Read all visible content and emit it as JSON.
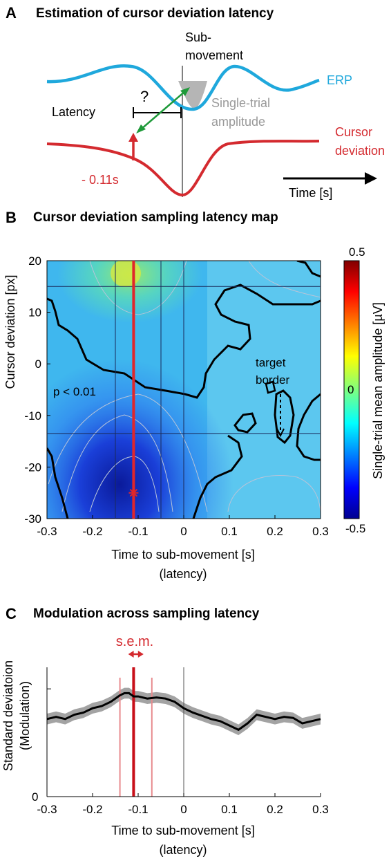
{
  "panelA": {
    "letter": "A",
    "title": "Estimation of cursor deviation latency",
    "submovement": [
      "Sub-",
      "movement"
    ],
    "erp_label": "ERP",
    "question": "?",
    "latency_label": "Latency",
    "single_trial": [
      "Single-trial",
      "amplitude"
    ],
    "cursor_label": [
      "Cursor",
      "deviation"
    ],
    "offset_label": "- 0.11s",
    "time_label": "Time [s]",
    "colors": {
      "erp": "#1fa8dc",
      "cursor": "#d42a2f",
      "arrow": "#1f9a3a",
      "patch": "#b5b5b5"
    }
  },
  "panelB": {
    "letter": "B",
    "title": "Cursor deviation sampling latency map",
    "ylabel": "Cursor deviation [px]",
    "xlabel": "Time to sub-movement [s]",
    "xlabel2": "(latency)",
    "pval": "p < 0.01",
    "target_border": [
      "target",
      "border"
    ],
    "colorbar_label": "Single-trial mean amplitude [µV]",
    "colorbar_ticks": [
      "0.5",
      "0",
      "-0.5"
    ]
  },
  "panelC": {
    "letter": "C",
    "title": "Modulation across sampling latency",
    "sem_label": "s.e.m.",
    "ylabel": "Standard deviatoion",
    "ylabel2": "(Modulation)",
    "xlabel": "Time to sub-movement [s]",
    "xlabel2": "(latency)",
    "y_zero": "0"
  },
  "chart_data": [
    {
      "type": "heatmap",
      "title": "Cursor deviation sampling latency map",
      "xlabel": "Time to sub-movement [s]",
      "ylabel": "Cursor deviation [px]",
      "xlim": [
        -0.3,
        0.3
      ],
      "ylim": [
        -30,
        20
      ],
      "x_ticks": [
        -0.3,
        -0.2,
        -0.1,
        0,
        0.1,
        0.2,
        0.3
      ],
      "x_tick_labels": [
        "-0.3",
        "-0.2",
        "-0.1",
        "0",
        "0.1",
        "0.2",
        "0.3"
      ],
      "y_ticks": [
        -30,
        -20,
        -10,
        0,
        10,
        20
      ],
      "y_tick_labels": [
        "-30",
        "-20",
        "-10",
        "0",
        "10",
        "20"
      ],
      "colorbar": {
        "min": -0.5,
        "max": 0.5,
        "label": "Single-trial mean amplitude [µV]",
        "colormap": "jet"
      },
      "marker": {
        "x": -0.11,
        "y": -25
      },
      "latency_line": -0.11,
      "hlines": [
        15,
        -13.5
      ],
      "vlines": [
        -0.15,
        -0.05,
        0
      ]
    },
    {
      "type": "line",
      "title": "Modulation across sampling latency",
      "xlabel": "Time to sub-movement [s]",
      "ylabel": "Standard deviatoion (Modulation)",
      "xlim": [
        -0.3,
        0.3
      ],
      "x_ticks": [
        -0.3,
        -0.2,
        -0.1,
        0,
        0.1,
        0.2,
        0.3
      ],
      "x_tick_labels": [
        "-0.3",
        "-0.2",
        "-0.1",
        "0",
        "0.1",
        "0.2",
        "0.3"
      ],
      "peak_latency": -0.11,
      "sem_range": [
        -0.14,
        -0.07
      ],
      "ylim": [
        0,
        1.2
      ],
      "x": [
        -0.3,
        -0.28,
        -0.26,
        -0.24,
        -0.22,
        -0.2,
        -0.18,
        -0.16,
        -0.14,
        -0.13,
        -0.12,
        -0.11,
        -0.1,
        -0.08,
        -0.06,
        -0.04,
        -0.02,
        0,
        0.02,
        0.04,
        0.06,
        0.08,
        0.1,
        0.12,
        0.14,
        0.16,
        0.18,
        0.2,
        0.22,
        0.24,
        0.26,
        0.28,
        0.3
      ],
      "y": [
        0.72,
        0.74,
        0.72,
        0.76,
        0.78,
        0.82,
        0.84,
        0.88,
        0.94,
        0.96,
        0.96,
        0.93,
        0.93,
        0.91,
        0.92,
        0.91,
        0.88,
        0.82,
        0.78,
        0.75,
        0.72,
        0.7,
        0.66,
        0.62,
        0.68,
        0.76,
        0.74,
        0.72,
        0.74,
        0.73,
        0.68,
        0.7,
        0.72
      ],
      "sem": 0.05
    }
  ]
}
